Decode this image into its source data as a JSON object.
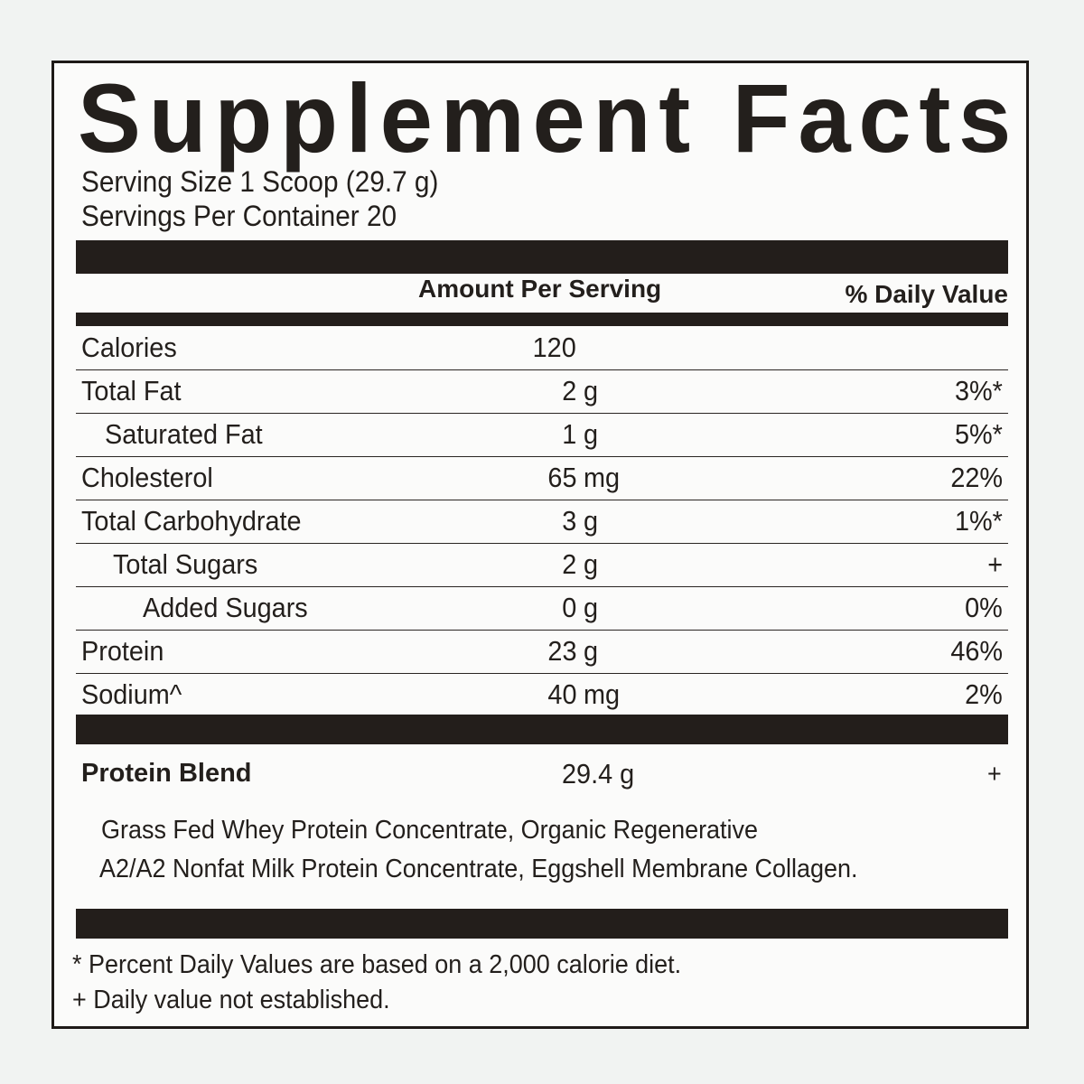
{
  "title": "Supplement Facts",
  "serving_size": "Serving Size 1 Scoop (29.7 g)",
  "servings_per_container": "Servings Per Container 20",
  "header": {
    "amount": "Amount Per Serving",
    "daily_value": "% Daily Value"
  },
  "nutrients": [
    {
      "label": "Calories",
      "amount": "120",
      "unit": "",
      "dv": "",
      "indent": 0
    },
    {
      "label": "Total Fat",
      "amount": "2",
      "unit": "g",
      "dv": "3%*",
      "indent": 0
    },
    {
      "label": "Saturated Fat",
      "amount": "1",
      "unit": "g",
      "dv": "5%*",
      "indent": 1
    },
    {
      "label": "Cholesterol",
      "amount": "65",
      "unit": "mg",
      "dv": "22%",
      "indent": 0
    },
    {
      "label": "Total Carbohydrate",
      "amount": "3",
      "unit": "g",
      "dv": "1%*",
      "indent": 0
    },
    {
      "label": "Total Sugars",
      "amount": "2",
      "unit": "g",
      "dv": "+",
      "indent": 2
    },
    {
      "label": "Added Sugars",
      "amount": "0",
      "unit": "g",
      "dv": "0%",
      "indent": 3
    },
    {
      "label": "Protein",
      "amount": "23",
      "unit": "g",
      "dv": "46%",
      "indent": 0
    },
    {
      "label": "Sodium^",
      "amount": "40",
      "unit": "mg",
      "dv": "2%",
      "indent": 0
    }
  ],
  "blend": {
    "label": "Protein Blend",
    "amount": "29.4 g",
    "dv": "+",
    "ingredients_line1": "Grass Fed Whey Protein Concentrate, Organic Regenerative",
    "ingredients_line2": "A2/A2 Nonfat Milk Protein Concentrate, Eggshell Membrane Collagen."
  },
  "footnotes": [
    "* Percent Daily Values are based on a 2,000 calorie diet.",
    "+ Daily value not established."
  ]
}
